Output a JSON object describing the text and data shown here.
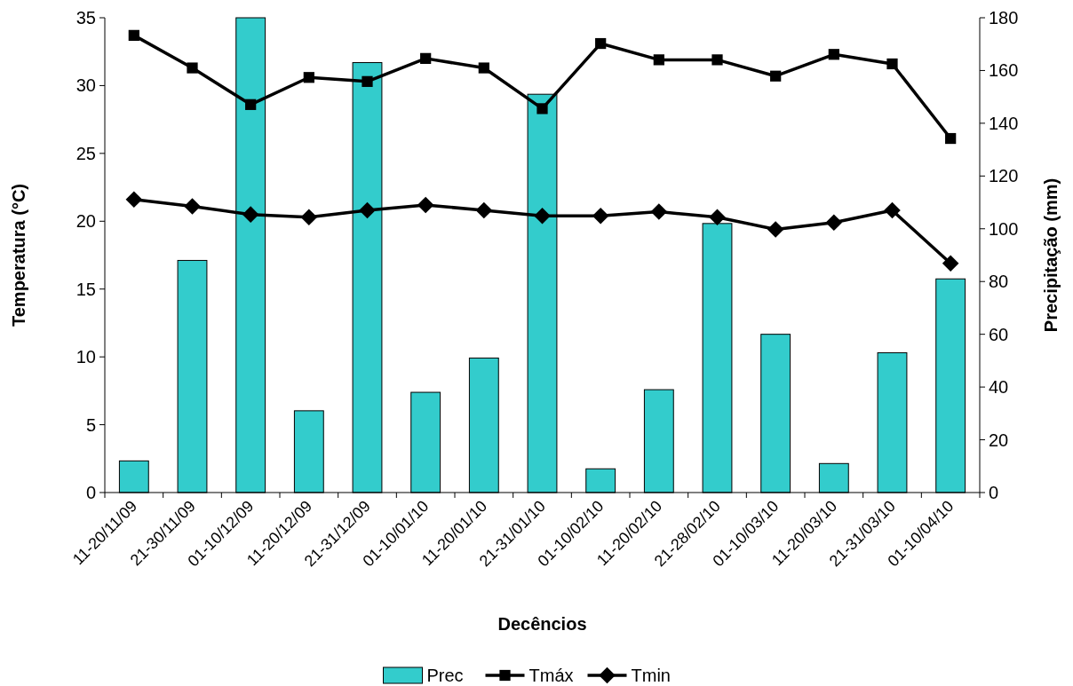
{
  "chart_data": {
    "type": "bar",
    "xlabel": "Decêncios",
    "ylabel": "Temperatura (°C)",
    "y2label": "Precipitação (mm)",
    "categories": [
      "11-20/11/09",
      "21-30/11/09",
      "01-10/12/09",
      "11-20/12/09",
      "21-31/12/09",
      "01-10/01/10",
      "11-20/01/10",
      "21-31/01/10",
      "01-10/02/10",
      "11-20/02/10",
      "21-28/02/10",
      "01-10/03/10",
      "11-20/03/10",
      "21-31/03/10",
      "01-10/04/10"
    ],
    "series": [
      {
        "name": "Prec",
        "axis": "y2",
        "color": "#33cccc",
        "values": [
          12,
          88,
          180,
          31,
          163,
          38,
          51,
          151,
          9,
          39,
          102,
          60,
          11,
          53,
          81
        ]
      },
      {
        "name": "Tmáx",
        "type": "line",
        "color": "#000000",
        "marker": "square",
        "values": [
          33.7,
          31.3,
          28.6,
          30.6,
          30.3,
          32.0,
          31.3,
          28.3,
          33.1,
          31.9,
          31.9,
          30.7,
          32.3,
          31.6,
          26.1
        ]
      },
      {
        "name": "Tmin",
        "type": "line",
        "color": "#000000",
        "marker": "diamond",
        "values": [
          21.6,
          21.1,
          20.5,
          20.3,
          20.8,
          21.2,
          20.8,
          20.4,
          20.4,
          20.7,
          20.3,
          19.4,
          19.9,
          20.8,
          16.9
        ]
      }
    ],
    "ylim": [
      0,
      35
    ],
    "yticks": [
      0,
      5,
      10,
      15,
      20,
      25,
      30,
      35
    ],
    "y2lim": [
      0,
      180
    ],
    "y2ticks": [
      0,
      20,
      40,
      60,
      80,
      100,
      120,
      140,
      160,
      180
    ],
    "grid": false,
    "legend": "bottom",
    "line_style": "solid"
  }
}
